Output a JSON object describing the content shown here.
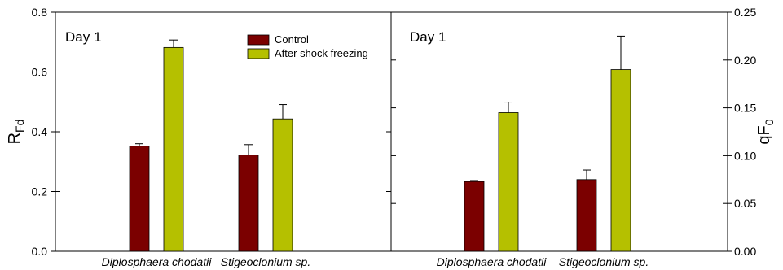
{
  "chart_data": [
    {
      "type": "bar",
      "panel_label": "Day 1",
      "y_axis": "left",
      "ylabel_main": "R",
      "ylabel_sub": "Fd",
      "ylim": [
        0,
        0.8
      ],
      "yticks": [
        "0.0",
        "0.2",
        "0.4",
        "0.6",
        "0.8"
      ],
      "categories": [
        "Diplosphaera chodatii",
        "Stigeoclonium sp."
      ],
      "series": [
        {
          "name": "Control",
          "values": [
            0.352,
            0.322
          ],
          "errors": [
            0.008,
            0.035
          ],
          "color": "#7b0000"
        },
        {
          "name": "After shock freezing",
          "values": [
            0.682,
            0.443
          ],
          "errors": [
            0.025,
            0.048
          ],
          "color": "#b5c000"
        }
      ],
      "legend": "top-center"
    },
    {
      "type": "bar",
      "panel_label": "Day 1",
      "y_axis": "right",
      "ylabel_main": "qF",
      "ylabel_sub": "0",
      "ylim": [
        0,
        0.25
      ],
      "yticks": [
        "0.00",
        "0.05",
        "0.10",
        "0.15",
        "0.20",
        "0.25"
      ],
      "categories": [
        "Diplosphaera chodatii",
        "Stigeoclonium sp."
      ],
      "series": [
        {
          "name": "Control",
          "values": [
            0.073,
            0.075
          ],
          "errors": [
            0.001,
            0.01
          ],
          "color": "#7b0000"
        },
        {
          "name": "After shock freezing",
          "values": [
            0.145,
            0.19
          ],
          "errors": [
            0.011,
            0.035
          ],
          "color": "#b5c000"
        }
      ]
    }
  ]
}
